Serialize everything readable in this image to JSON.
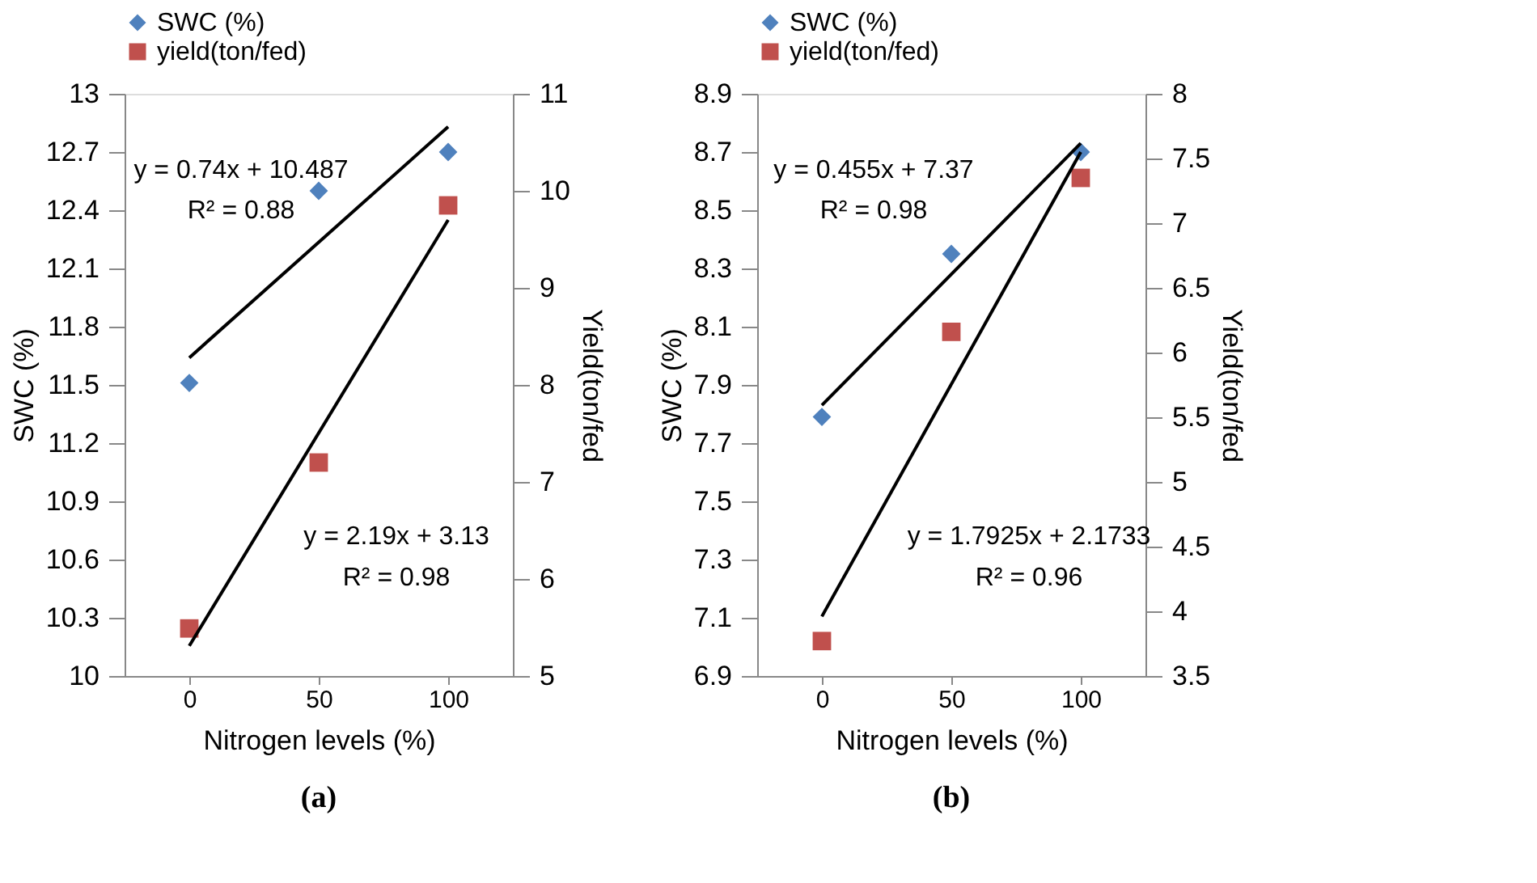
{
  "chart_data": [
    {
      "type": "scatter",
      "title": "(a)",
      "xlabel": "Nitrogen levels (%)",
      "ylabel": "SWC (%)",
      "y2label": "Yield(ton/fed",
      "categories": [
        "0",
        "50",
        "100"
      ],
      "ylim": [
        10,
        13
      ],
      "yticks": [
        10,
        10.3,
        10.6,
        10.9,
        11.2,
        11.5,
        11.8,
        12.1,
        12.4,
        12.7,
        13
      ],
      "y2lim": [
        5,
        11
      ],
      "y2ticks": [
        5,
        6,
        7,
        8,
        9,
        10,
        11
      ],
      "grid": false,
      "legend": "top",
      "series": [
        {
          "name": "SWC (%)",
          "marker": "diamond",
          "color": "#4f81bd",
          "values": [
            11.51,
            12.5,
            12.7
          ]
        },
        {
          "name": "yield(ton/fed)",
          "marker": "square",
          "color": "#c0504d",
          "axis": "y2",
          "values": [
            5.49,
            7.2,
            9.85
          ]
        },
        {
          "type": "line",
          "color": "#000000",
          "x": [
            "0",
            "100"
          ],
          "values": [
            11.64,
            12.83
          ],
          "line_style": "solid"
        },
        {
          "type": "line",
          "color": "#000000",
          "x": [
            "0",
            "100"
          ],
          "axis": "y2",
          "values": [
            5.31,
            9.7
          ],
          "line_style": "solid"
        }
      ],
      "annotations": [
        "y = 0.74x + 10.487",
        "R² = 0.88",
        "y = 2.19x + 3.13",
        "R² = 0.98"
      ]
    },
    {
      "type": "scatter",
      "title": "(b)",
      "xlabel": "Nitrogen levels (%)",
      "ylabel": "SWC (%)",
      "y2label": "Yield(ton/fed",
      "categories": [
        "0",
        "50",
        "100"
      ],
      "ylim": [
        6.9,
        8.9
      ],
      "yticks": [
        6.9,
        7.1,
        7.3,
        7.5,
        7.7,
        7.9,
        8.1,
        8.3,
        8.5,
        8.7,
        8.9
      ],
      "y2lim": [
        3.5,
        8
      ],
      "y2ticks": [
        3.5,
        4,
        4.5,
        5,
        5.5,
        6,
        6.5,
        7,
        7.5,
        8
      ],
      "grid": false,
      "legend": "top",
      "series": [
        {
          "name": "SWC (%)",
          "marker": "diamond",
          "color": "#4f81bd",
          "values": [
            7.79,
            8.35,
            8.7
          ]
        },
        {
          "name": "yield(ton/fed)",
          "marker": "square",
          "color": "#c0504d",
          "axis": "y2",
          "values": [
            3.77,
            6.16,
            7.35
          ]
        },
        {
          "type": "line",
          "color": "#000000",
          "x": [
            "0",
            "100"
          ],
          "values": [
            7.83,
            8.73
          ],
          "line_style": "solid"
        },
        {
          "type": "line",
          "color": "#000000",
          "x": [
            "0",
            "100"
          ],
          "axis": "y2",
          "values": [
            3.96,
            7.55
          ],
          "line_style": "solid"
        }
      ],
      "annotations": [
        "y = 0.455x + 7.37",
        "R² = 0.98",
        "y = 1.7925x + 2.1733",
        "R² = 0.96"
      ]
    }
  ]
}
